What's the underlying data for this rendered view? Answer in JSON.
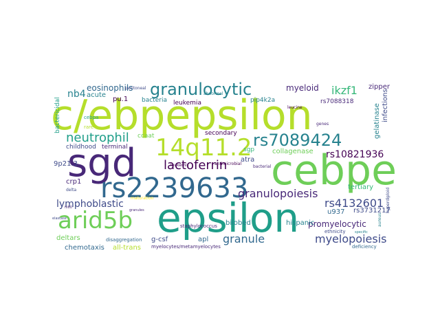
{
  "colors": {
    "background": "#ffffff",
    "purple": "#440154",
    "indigo": "#482878",
    "blue": "#3e4a89",
    "steel": "#31688e",
    "teal": "#26828e",
    "aqua": "#1f9e89",
    "green": "#35b779",
    "lime": "#6ece58",
    "yellowgreen": "#b5de2b",
    "yellow": "#fde725"
  },
  "words": {
    "c_ebpepsilon": "c/ebpepsilon",
    "sgd": "sgd",
    "cebpe": "cebpe",
    "epsilon": "epsilon",
    "rs2239633": "rs2239633",
    "q14": "14q11.2",
    "arid5b": "arid5b",
    "granulocytic": "granulocytic",
    "rs7089424": "rs7089424",
    "lactoferrin": "lactoferrin",
    "neutrophil": "neutrophil",
    "granulopoiesis": "granulopoiesis",
    "myelopoiesis": "myelopoiesis",
    "granule": "granule",
    "lymphoblastic": "lymphoblastic",
    "rs4132601": "rs4132601",
    "ikzf1": "ikzf1",
    "rs10821936": "rs10821936",
    "promyelocytic": "promyelocytic",
    "myeloid": "myeloid",
    "eosinophils": "eosinophils",
    "nb4": "nb4",
    "collagenase": "collagenase",
    "tertiary": "tertiary",
    "hispanic": "hispanic",
    "rs3731217": "rs3731217",
    "u937": "u937",
    "apl": "apl",
    "g_csf": "g-csf",
    "chemotaxis": "chemotaxis",
    "all_trans": "all-trans",
    "deltars": "deltars",
    "bilobed": "bilobed",
    "atra": "atra",
    "sgp": "sgp",
    "secondary": "secondary",
    "ccaat": "ccaat",
    "terminal": "terminal",
    "childhood": "childhood",
    "crp1": "crp1",
    "p9p21": "9p21.3",
    "acute": "acute",
    "pu1": "pu.1",
    "bacteria": "bacteria",
    "leukemia": "leukemia",
    "pip4k2a": "pip4k2a",
    "zipper": "zipper",
    "infections": "infections",
    "gelatinase": "gelatinase",
    "rs7088318": "rs7088318",
    "bactericidal": "bactericidal",
    "cebpa": "cebpa",
    "rare": "rare",
    "ethnicity": "ethnicity",
    "deficiency": "deficiency",
    "myelocytes_metamyelocytes": "myelocytes/metamyelocytes",
    "staphylococcus": "staphylococcus",
    "disaggregation": "disaggregation",
    "antimicrobial": "antimicrobial",
    "leukemic": "leukemic",
    "aureus": "aureus",
    "hyperdiploid": "hyperdiploid",
    "bacterial": "bacterial",
    "leucine": "leucine",
    "genes": "genes",
    "peritoneal": "peritoneal",
    "abnormal": "abnormal",
    "delta": "delta",
    "maturation": "maturation",
    "elastase": "elastase",
    "hl60": "hl60",
    "sdiaspore": "specific",
    "granules": "granules"
  }
}
